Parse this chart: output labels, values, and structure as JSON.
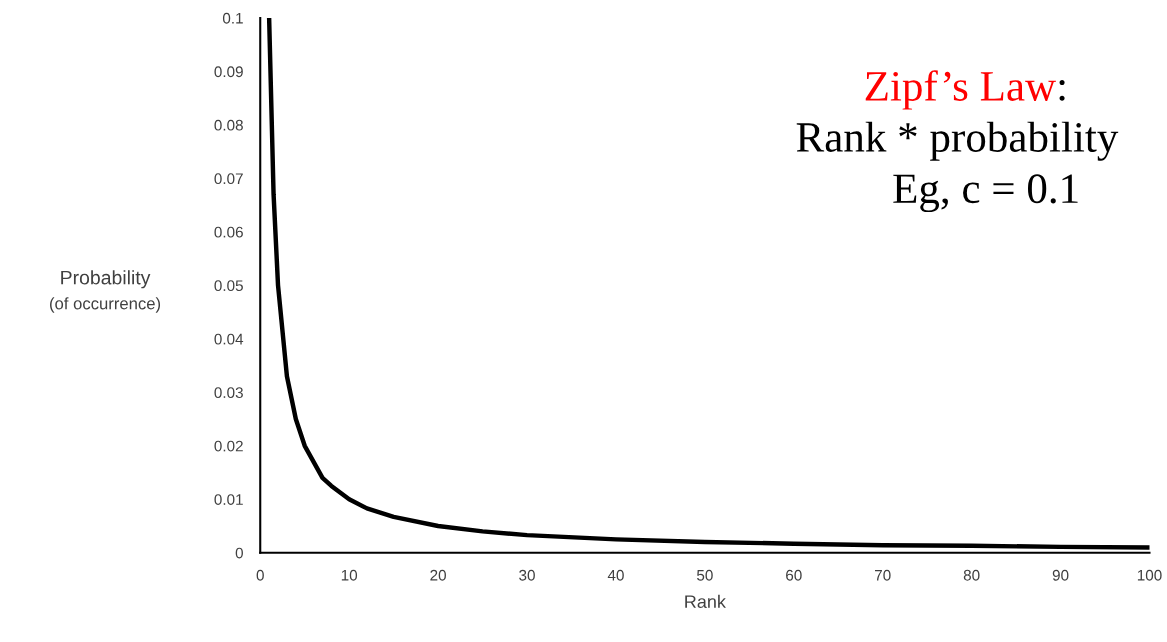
{
  "chart_data": {
    "type": "line",
    "xlabel": "Rank",
    "ylabel": "Probability\n(of occurrence)",
    "x": [
      1,
      1.5,
      2,
      3,
      4,
      5,
      6,
      7,
      8,
      10,
      12,
      15,
      20,
      25,
      30,
      40,
      50,
      60,
      70,
      80,
      90,
      100
    ],
    "series": [
      {
        "color": "#000000",
        "values": [
          0.1,
          0.067,
          0.05,
          0.033,
          0.025,
          0.02,
          0.017,
          0.014,
          0.0125,
          0.01,
          0.0083,
          0.0067,
          0.005,
          0.004,
          0.0033,
          0.0025,
          0.002,
          0.0017,
          0.0014,
          0.0013,
          0.0011,
          0.001
        ]
      }
    ],
    "xlim": [
      0,
      100
    ],
    "xticks": [
      0,
      10,
      20,
      30,
      40,
      50,
      60,
      70,
      80,
      90,
      100
    ],
    "ylim": [
      0,
      0.1
    ],
    "yticks": [
      0,
      0.01,
      0.02,
      0.03,
      0.04,
      0.05,
      0.06,
      0.07,
      0.08,
      0.09,
      0.1
    ],
    "grid": false,
    "legend": false,
    "marker": "none",
    "line_style": "solid",
    "annotations": [
      "Zipf’s Law:",
      "Rank * probability",
      "Eg, c = 0.1"
    ]
  }
}
